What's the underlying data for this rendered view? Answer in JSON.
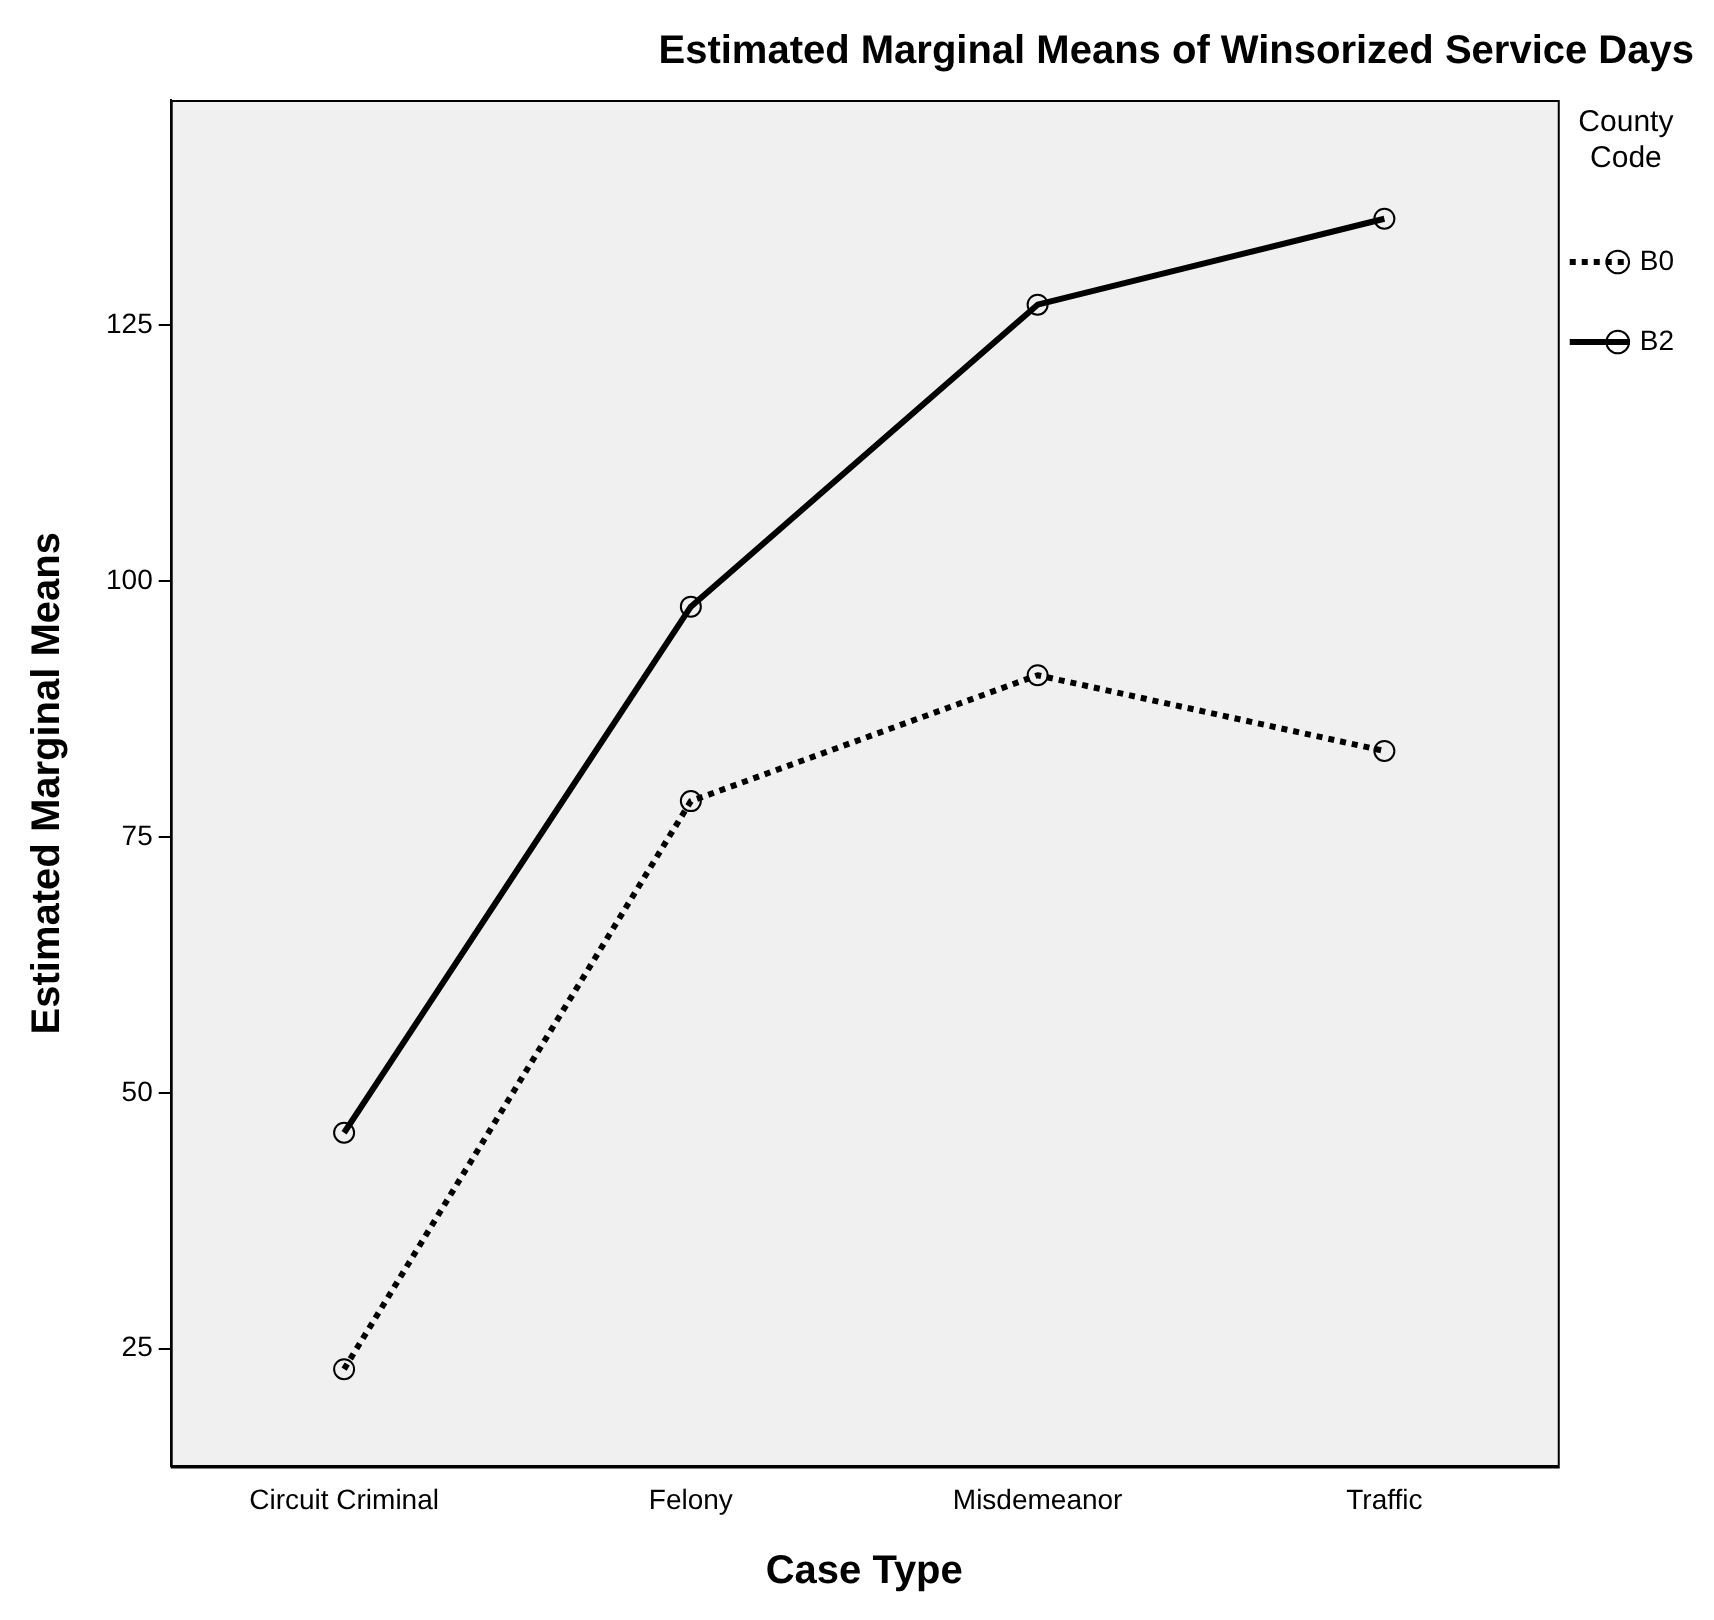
{
  "chart_data": {
    "type": "line",
    "title": "Estimated Marginal Means of Winsorized Service Days",
    "xlabel": "Case Type",
    "ylabel": "Estimated Marginal Means",
    "legend_title": "County Code",
    "categories": [
      "Circuit Criminal",
      "Felony",
      "Misdemeanor",
      "Traffic"
    ],
    "series": [
      {
        "name": "B0",
        "color": "#000000",
        "line_style": "dotted",
        "values": [
          23.0,
          78.5,
          90.8,
          83.4
        ]
      },
      {
        "name": "B2",
        "color": "#000000",
        "line_style": "solid",
        "values": [
          46.1,
          97.5,
          127.0,
          135.4
        ]
      }
    ],
    "ylim": [
      13.5,
      147
    ],
    "yticks": [
      25,
      50,
      75,
      100,
      125
    ],
    "grid": false,
    "legend": "right",
    "marker": "circle"
  }
}
